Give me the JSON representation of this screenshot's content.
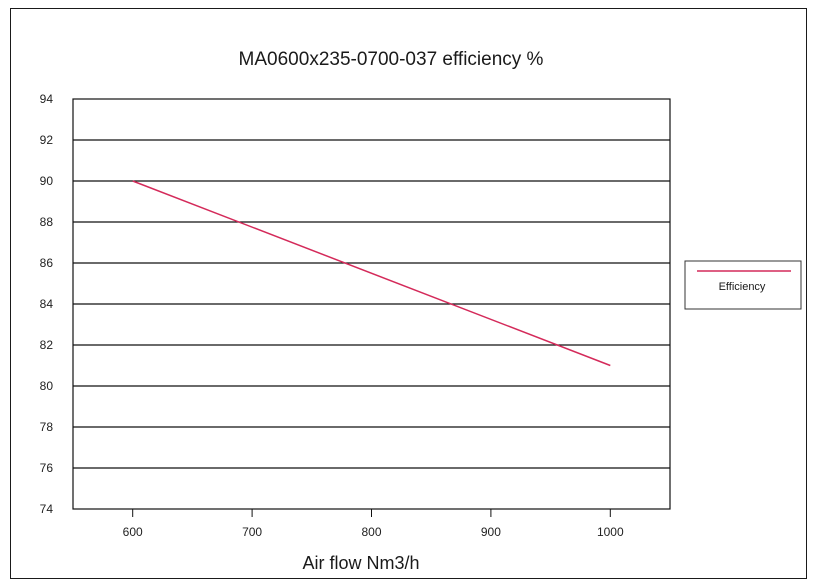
{
  "chart_data": {
    "type": "line",
    "title": "MA0600x235-0700-037 efficiency %",
    "xlabel": "Air flow Nm3/h",
    "ylabel": "",
    "x_ticks": [
      "600",
      "700",
      "800",
      "900",
      "1000"
    ],
    "y_ticks": [
      "94",
      "92",
      "90",
      "88",
      "86",
      "84",
      "82",
      "80",
      "78",
      "76",
      "74"
    ],
    "ylim": [
      74,
      94
    ],
    "xlim": [
      550,
      1050
    ],
    "grid": true,
    "legend_position": "right",
    "series": [
      {
        "name": "Efficiency",
        "color": "#d42a5a",
        "x": [
          600,
          1000
        ],
        "y": [
          90,
          81
        ]
      }
    ]
  }
}
